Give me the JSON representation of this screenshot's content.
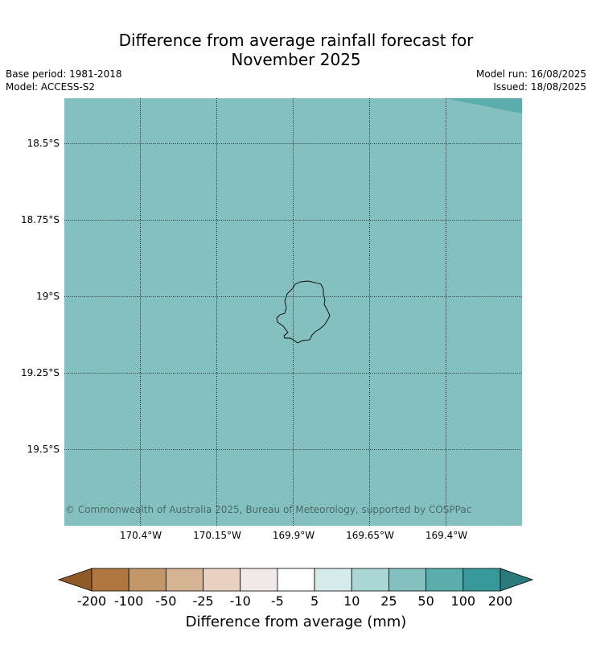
{
  "title_line1": "Difference from average rainfall forecast for",
  "title_line2": "November 2025",
  "meta_left": [
    "Base period: 1981-2018",
    "Model: ACCESS-S2"
  ],
  "meta_right": [
    "Model run: 16/08/2025",
    "Issued: 18/08/2025"
  ],
  "copyright": "© Commonwealth of Australia 2025, Bureau of Meteorology, supported by COSPPac",
  "map": {
    "background_color": "#84c0bf",
    "corner_color": "#5aadaa",
    "lat_labels": [
      "18.5°S",
      "18.75°S",
      "19°S",
      "19.25°S",
      "19.5°S"
    ],
    "lon_labels": [
      "170.4°W",
      "170.15°W",
      "169.9°W",
      "169.65°W",
      "169.4°W"
    ]
  },
  "colorbar": {
    "ticks": [
      "-200",
      "-100",
      "-50",
      "-25",
      "-10",
      "-5",
      "5",
      "10",
      "25",
      "50",
      "100",
      "200"
    ],
    "colors": [
      "#8f5a26",
      "#b07840",
      "#c49769",
      "#d5b393",
      "#e8d1c0",
      "#f0ebe8",
      "#ffffff",
      "#d4ebea",
      "#aad7d6",
      "#84c0bf",
      "#5aadaa",
      "#38999a",
      "#2a7c7c"
    ],
    "label": "Difference from average (mm)"
  }
}
